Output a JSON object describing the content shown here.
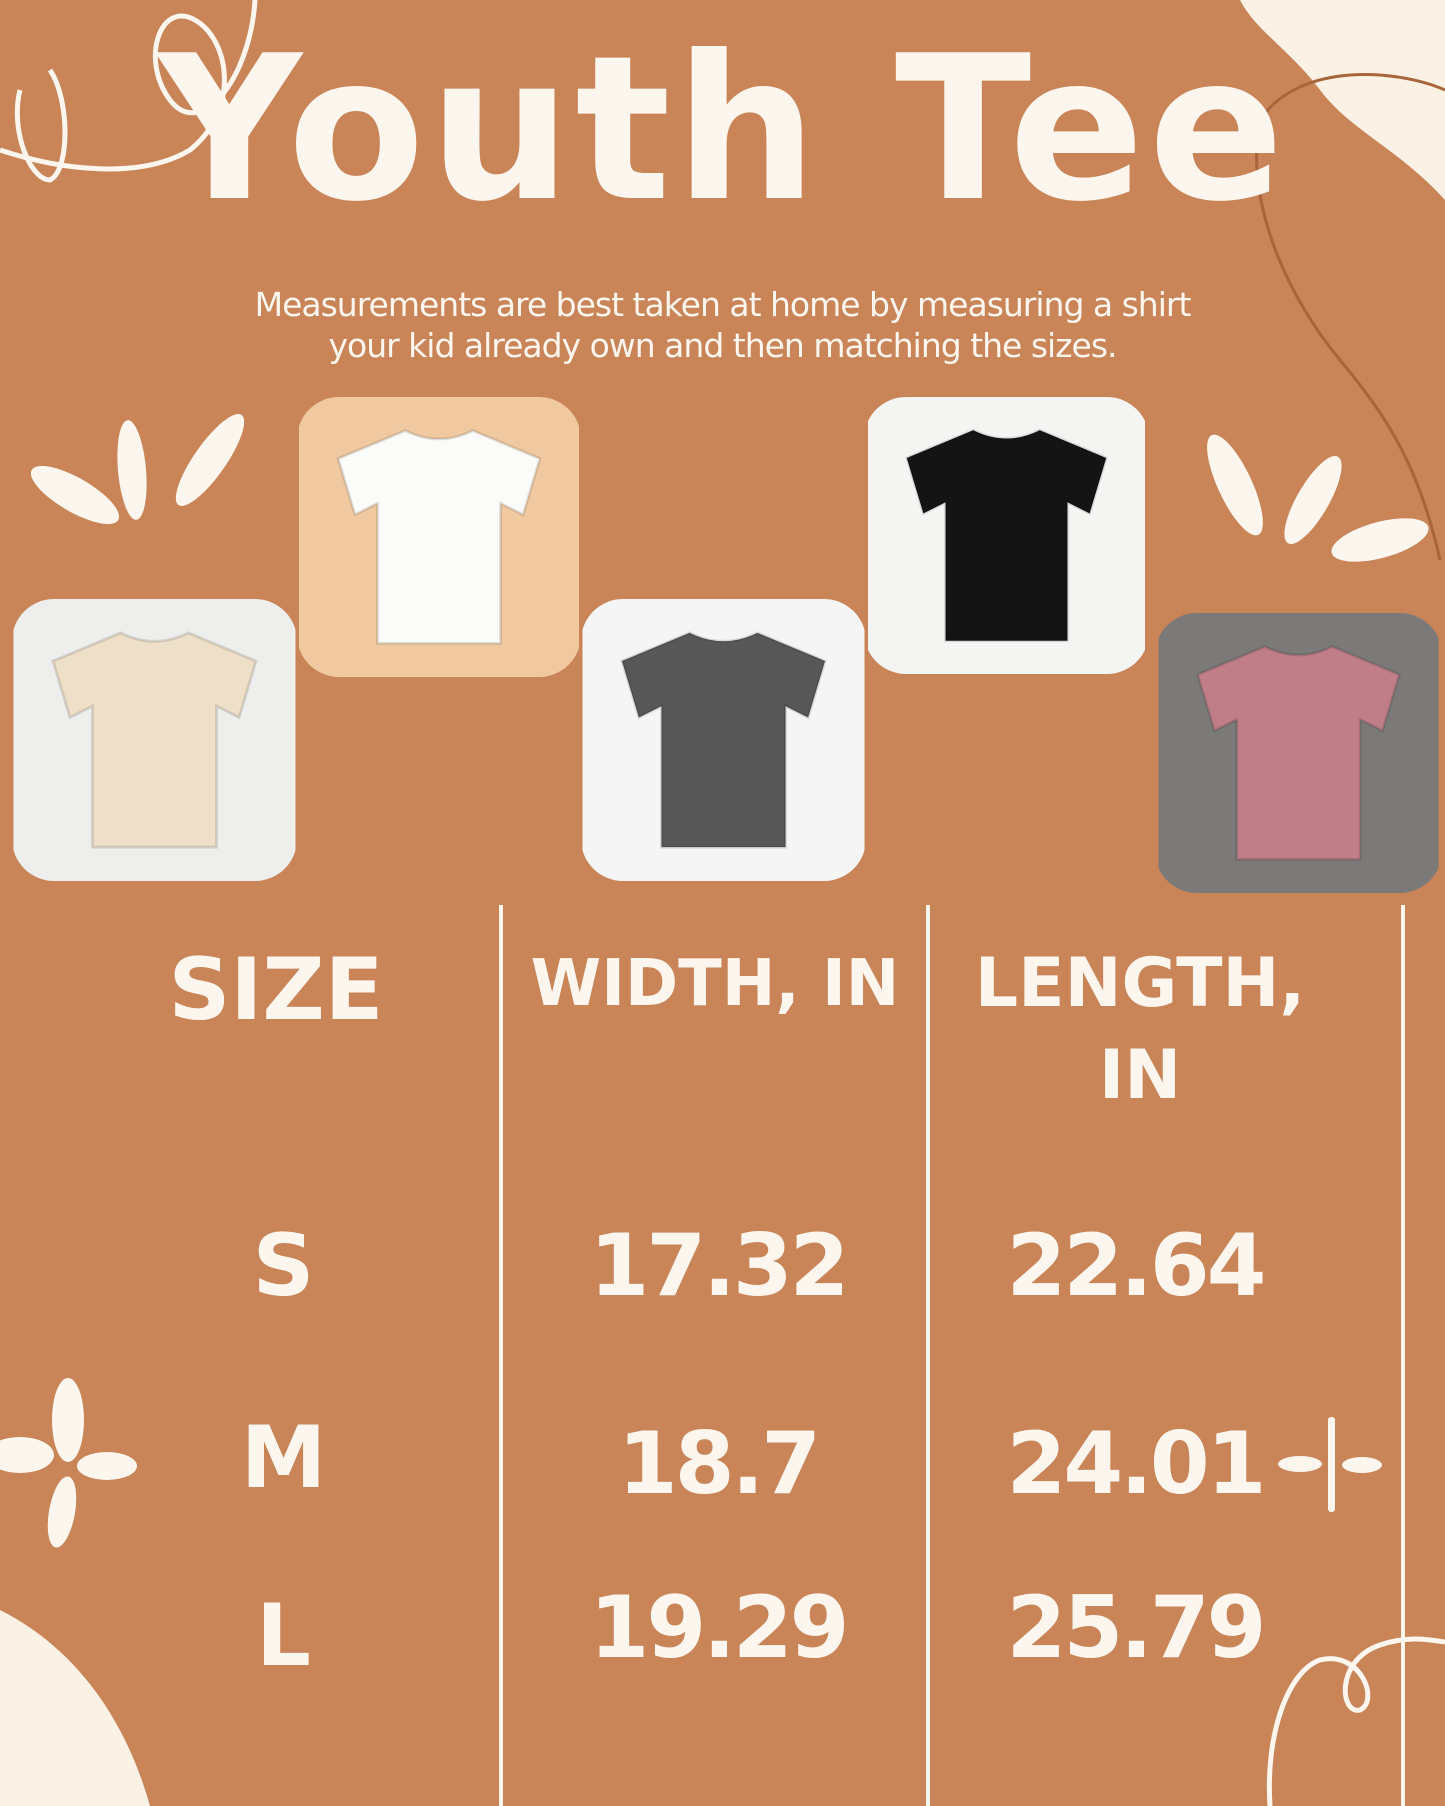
{
  "title": "Youth Tee",
  "subtitle": {
    "line1": "Measurements are best taken at home by measuring a shirt",
    "line2": "your kid already own and then matching the sizes."
  },
  "photos": [
    {
      "name": "white-tee",
      "shirt_color": "#FBFBF9",
      "bg_color": "#F0C9A0"
    },
    {
      "name": "black-tee",
      "shirt_color": "#141414",
      "bg_color": "#F4F4F2"
    },
    {
      "name": "beige-tee",
      "shirt_color": "#EEDFC8",
      "bg_color": "#EEEEEC"
    },
    {
      "name": "gray-tee",
      "shirt_color": "#575757",
      "bg_color": "#F5F5F5"
    },
    {
      "name": "pink-tee",
      "shirt_color": "#C07E88",
      "bg_color": "#7C7A78"
    }
  ],
  "table": {
    "headers": [
      "SIZE",
      "WIDTH, IN",
      "LENGTH,",
      "IN"
    ],
    "rows": [
      {
        "size": "S",
        "width": "17.32",
        "length": "22.64"
      },
      {
        "size": "M",
        "width": "18.7",
        "length": "24.01"
      },
      {
        "size": "L",
        "width": "19.29",
        "length": "25.79"
      }
    ]
  },
  "colors": {
    "background": "#C98458",
    "text": "#FCF6EE",
    "blob": "#FBF1E4"
  }
}
